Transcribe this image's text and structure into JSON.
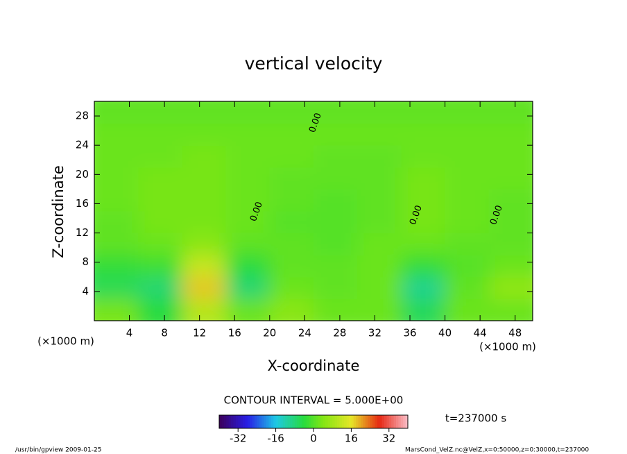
{
  "chart_data": {
    "type": "contour",
    "title": "vertical velocity",
    "x_label": "X-coordinate",
    "y_label": "Z-coordinate",
    "x_unit": "(×1000 m)",
    "y_unit": "(×1000 m)",
    "x": [
      2.5,
      7.5,
      12.5,
      17.5,
      22.5,
      27.5,
      32.5,
      37.5,
      42.5,
      47.5
    ],
    "y": [
      1.5,
      4.5,
      7.5,
      10.5,
      13.5,
      16.5,
      19.5,
      22.5,
      25.5,
      28.5
    ],
    "z": [
      [
        3,
        -4,
        10,
        2,
        5,
        2,
        2,
        -6,
        2,
        2
      ],
      [
        -6,
        -8,
        18,
        -8,
        2,
        1,
        2,
        -10,
        1,
        6
      ],
      [
        -3,
        -2,
        12,
        -4,
        1,
        1,
        2,
        -3,
        0,
        2
      ],
      [
        1,
        2,
        5,
        1,
        1,
        0,
        2,
        2,
        1,
        1
      ],
      [
        1,
        3,
        3,
        2,
        0,
        0,
        1,
        3,
        2,
        1
      ],
      [
        2,
        3,
        3,
        2,
        1,
        0,
        1,
        3,
        2,
        1
      ],
      [
        2,
        3,
        3,
        2,
        1,
        1,
        1,
        3,
        2,
        2
      ],
      [
        2,
        2,
        3,
        2,
        2,
        1,
        1,
        2,
        2,
        2
      ],
      [
        2,
        2,
        2,
        2,
        2,
        2,
        2,
        2,
        2,
        2
      ],
      [
        1,
        1,
        1,
        1,
        1,
        1,
        1,
        1,
        1,
        1
      ]
    ],
    "xlim": [
      0,
      50
    ],
    "ylim": [
      0,
      30
    ],
    "xticks": [
      4,
      8,
      12,
      16,
      20,
      24,
      28,
      32,
      36,
      40,
      44,
      48
    ],
    "yticks": [
      4,
      8,
      12,
      16,
      20,
      24,
      28
    ],
    "contour_labels": [
      "0.00",
      "0.00",
      "0.00",
      "0.00"
    ],
    "contour_interval": "CONTOUR INTERVAL = 5.000E+00",
    "clim": [
      -40,
      40
    ],
    "cticks": [
      -32,
      -16,
      0,
      16,
      32
    ],
    "time_label": "t=237000 s",
    "footer_left": "/usr/bin/gpview  2009-01-25",
    "footer_right": "MarsCond_VelZ.nc@VelZ,x=0:50000,z=0:30000,t=237000"
  }
}
